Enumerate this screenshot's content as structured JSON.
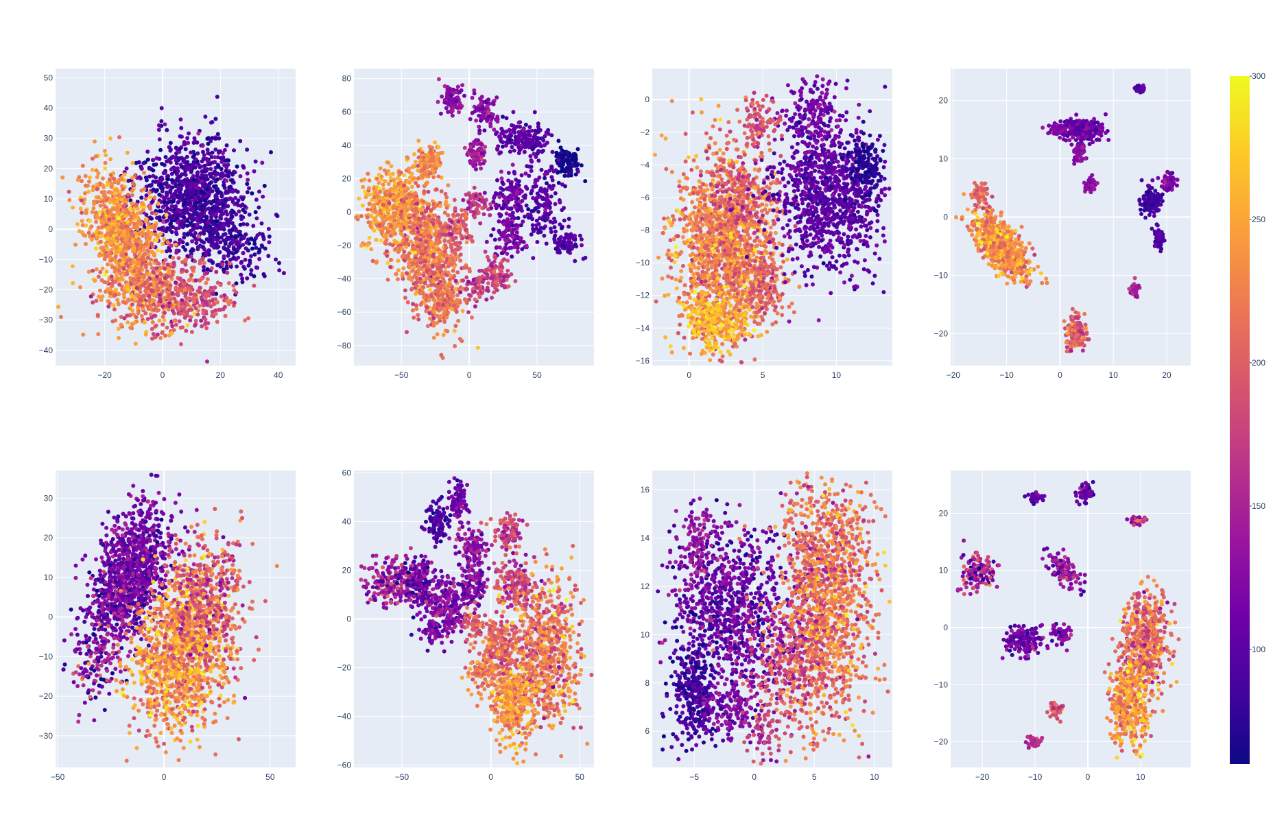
{
  "chart_data": [
    {
      "type": "scatter",
      "xrange": [
        -37,
        46
      ],
      "yrange": [
        -45,
        53
      ],
      "xticks": [
        -20,
        0,
        20,
        40
      ],
      "xtick_labels": [
        "−20",
        "0",
        "20",
        "40"
      ],
      "yticks": [
        -40,
        -30,
        -20,
        -10,
        0,
        10,
        20,
        30,
        40,
        50
      ],
      "ytick_labels": [
        "−40",
        "−30",
        "−20",
        "−10",
        "0",
        "10",
        "20",
        "30",
        "40",
        "50"
      ],
      "clusters": [
        {
          "cx": 10,
          "cy": 12,
          "sx": 9,
          "sy": 10,
          "n": 900,
          "c": 90,
          "cs": 18,
          "rot": -0.7
        },
        {
          "cx": 22,
          "cy": -3,
          "sx": 8,
          "sy": 6,
          "n": 300,
          "c": 85,
          "cs": 15,
          "rot": -0.5
        },
        {
          "cx": -14,
          "cy": 0,
          "sx": 6,
          "sy": 10,
          "n": 800,
          "c": 235,
          "cs": 22,
          "rot": 0.4
        },
        {
          "cx": -6,
          "cy": -20,
          "sx": 9,
          "sy": 6,
          "n": 400,
          "c": 220,
          "cs": 25,
          "rot": 0
        },
        {
          "cx": 8,
          "cy": -22,
          "sx": 8,
          "sy": 6,
          "n": 250,
          "c": 185,
          "cs": 20,
          "rot": 0
        }
      ]
    },
    {
      "type": "scatter",
      "xrange": [
        -85,
        92
      ],
      "yrange": [
        -92,
        86
      ],
      "xticks": [
        -50,
        0,
        50
      ],
      "xtick_labels": [
        "−50",
        "0",
        "50"
      ],
      "yticks": [
        -80,
        -60,
        -40,
        -20,
        0,
        20,
        40,
        60,
        80
      ],
      "ytick_labels": [
        "−80",
        "−60",
        "−40",
        "−20",
        "0",
        "20",
        "40",
        "60",
        "80"
      ],
      "clusters": [
        {
          "cx": -55,
          "cy": 2,
          "sx": 12,
          "sy": 12,
          "n": 500,
          "c": 240,
          "cs": 20,
          "rot": 0
        },
        {
          "cx": -30,
          "cy": -25,
          "sx": 12,
          "sy": 20,
          "n": 700,
          "c": 215,
          "cs": 25,
          "rot": 0.3
        },
        {
          "cx": -30,
          "cy": 30,
          "sx": 5,
          "sy": 5,
          "n": 120,
          "c": 230,
          "cs": 20,
          "rot": 0
        },
        {
          "cx": -12,
          "cy": 68,
          "sx": 4,
          "sy": 5,
          "n": 80,
          "c": 130,
          "cs": 15,
          "rot": 0
        },
        {
          "cx": 12,
          "cy": 60,
          "sx": 5,
          "sy": 5,
          "n": 80,
          "c": 125,
          "cs": 15,
          "rot": 0
        },
        {
          "cx": 40,
          "cy": 44,
          "sx": 10,
          "sy": 5,
          "n": 180,
          "c": 100,
          "cs": 12,
          "rot": 0
        },
        {
          "cx": 72,
          "cy": 30,
          "sx": 5,
          "sy": 4,
          "n": 100,
          "c": 60,
          "cs": 8,
          "rot": 0
        },
        {
          "cx": 5,
          "cy": 35,
          "sx": 4,
          "sy": 4,
          "n": 80,
          "c": 140,
          "cs": 15,
          "rot": 0
        },
        {
          "cx": 30,
          "cy": 10,
          "sx": 6,
          "sy": 7,
          "n": 120,
          "c": 110,
          "cs": 15,
          "rot": 0
        },
        {
          "cx": 55,
          "cy": 5,
          "sx": 8,
          "sy": 10,
          "n": 150,
          "c": 100,
          "cs": 15,
          "rot": 0
        },
        {
          "cx": 30,
          "cy": -15,
          "sx": 6,
          "sy": 6,
          "n": 100,
          "c": 120,
          "cs": 15,
          "rot": 0
        },
        {
          "cx": 72,
          "cy": -18,
          "sx": 5,
          "sy": 4,
          "n": 80,
          "c": 95,
          "cs": 12,
          "rot": 0
        },
        {
          "cx": 20,
          "cy": -37,
          "sx": 6,
          "sy": 5,
          "n": 100,
          "c": 175,
          "cs": 20,
          "rot": 0
        },
        {
          "cx": 5,
          "cy": -45,
          "sx": 6,
          "sy": 4,
          "n": 60,
          "c": 180,
          "cs": 20,
          "rot": 0
        },
        {
          "cx": -20,
          "cy": -55,
          "sx": 6,
          "sy": 6,
          "n": 120,
          "c": 215,
          "cs": 20,
          "rot": 0
        },
        {
          "cx": 5,
          "cy": 5,
          "sx": 4,
          "sy": 4,
          "n": 60,
          "c": 170,
          "cs": 20,
          "rot": 0
        },
        {
          "cx": -10,
          "cy": -10,
          "sx": 6,
          "sy": 6,
          "n": 80,
          "c": 190,
          "cs": 20,
          "rot": 0
        }
      ]
    },
    {
      "type": "scatter",
      "xrange": [
        -2.5,
        13.8
      ],
      "yrange": [
        -16.3,
        1.9
      ],
      "xticks": [
        0,
        5,
        10
      ],
      "xtick_labels": [
        "0",
        "5",
        "10"
      ],
      "yticks": [
        -16,
        -14,
        -12,
        -10,
        -8,
        -6,
        -4,
        -2,
        0
      ],
      "ytick_labels": [
        "−16",
        "−14",
        "−12",
        "−10",
        "−8",
        "−6",
        "−4",
        "−2",
        "0"
      ],
      "clusters": [
        {
          "cx": 2.5,
          "cy": -9,
          "sx": 1.7,
          "sy": 2.8,
          "n": 1400,
          "c": 225,
          "cs": 25,
          "rot": 0
        },
        {
          "cx": 1.8,
          "cy": -13.5,
          "sx": 1.2,
          "sy": 0.9,
          "n": 300,
          "c": 260,
          "cs": 20,
          "rot": 0
        },
        {
          "cx": 3.5,
          "cy": -6,
          "sx": 1.2,
          "sy": 1.2,
          "n": 200,
          "c": 190,
          "cs": 20,
          "rot": 0
        },
        {
          "cx": 5,
          "cy": -11.5,
          "sx": 0.8,
          "sy": 1,
          "n": 150,
          "c": 200,
          "cs": 20,
          "rot": 0
        },
        {
          "cx": 9.5,
          "cy": -6,
          "sx": 1.8,
          "sy": 2.2,
          "n": 1000,
          "c": 100,
          "cs": 15,
          "rot": 0
        },
        {
          "cx": 8.3,
          "cy": -1,
          "sx": 1,
          "sy": 1.2,
          "n": 180,
          "c": 115,
          "cs": 15,
          "rot": 0
        },
        {
          "cx": 12,
          "cy": -4,
          "sx": 0.6,
          "sy": 0.8,
          "n": 120,
          "c": 70,
          "cs": 10,
          "rot": 0
        },
        {
          "cx": 4.8,
          "cy": -1.5,
          "sx": 0.7,
          "sy": 0.8,
          "n": 100,
          "c": 190,
          "cs": 20,
          "rot": 0
        }
      ]
    },
    {
      "type": "scatter",
      "xrange": [
        -20.5,
        24.5
      ],
      "yrange": [
        -25.5,
        25.5
      ],
      "xticks": [
        -20,
        -10,
        0,
        10,
        20
      ],
      "xtick_labels": [
        "−20",
        "−10",
        "0",
        "10",
        "20"
      ],
      "yticks": [
        -20,
        -10,
        0,
        10,
        20
      ],
      "ytick_labels": [
        "−20",
        "−10",
        "0",
        "10",
        "20"
      ],
      "clusters": [
        {
          "cx": -11,
          "cy": -5,
          "sx": 3.2,
          "sy": 1.5,
          "n": 800,
          "c": 235,
          "cs": 25,
          "rot": -0.85
        },
        {
          "cx": -15,
          "cy": 4,
          "sx": 0.8,
          "sy": 1.5,
          "n": 60,
          "c": 200,
          "cs": 20,
          "rot": 0
        },
        {
          "cx": 4,
          "cy": 15,
          "sx": 2,
          "sy": 1,
          "n": 250,
          "c": 110,
          "cs": 15,
          "rot": 0
        },
        {
          "cx": -0.5,
          "cy": 15,
          "sx": 0.8,
          "sy": 0.5,
          "n": 50,
          "c": 120,
          "cs": 10,
          "rot": 0
        },
        {
          "cx": 3.5,
          "cy": 11,
          "sx": 0.6,
          "sy": 0.9,
          "n": 50,
          "c": 125,
          "cs": 10,
          "rot": 0
        },
        {
          "cx": 15,
          "cy": 22,
          "sx": 0.5,
          "sy": 0.3,
          "n": 40,
          "c": 100,
          "cs": 10,
          "rot": 0
        },
        {
          "cx": 5.5,
          "cy": 5.5,
          "sx": 0.5,
          "sy": 0.7,
          "n": 40,
          "c": 130,
          "cs": 10,
          "rot": 0
        },
        {
          "cx": 17,
          "cy": 3,
          "sx": 1,
          "sy": 1.2,
          "n": 120,
          "c": 85,
          "cs": 10,
          "rot": 0
        },
        {
          "cx": 20.5,
          "cy": 6,
          "sx": 0.7,
          "sy": 0.8,
          "n": 80,
          "c": 125,
          "cs": 12,
          "rot": 0
        },
        {
          "cx": 18.5,
          "cy": -3.5,
          "sx": 0.5,
          "sy": 0.8,
          "n": 60,
          "c": 90,
          "cs": 10,
          "rot": 0
        },
        {
          "cx": 14,
          "cy": -12.5,
          "sx": 0.4,
          "sy": 0.6,
          "n": 40,
          "c": 150,
          "cs": 12,
          "rot": 0
        },
        {
          "cx": 3,
          "cy": -20,
          "sx": 0.9,
          "sy": 1.5,
          "n": 140,
          "c": 195,
          "cs": 25,
          "rot": 0
        }
      ]
    },
    {
      "type": "scatter",
      "xrange": [
        -51,
        62
      ],
      "yrange": [
        -38,
        37
      ],
      "xticks": [
        -50,
        0,
        50
      ],
      "xtick_labels": [
        "−50",
        "0",
        "50"
      ],
      "yticks": [
        -30,
        -20,
        -10,
        0,
        10,
        20,
        30
      ],
      "ytick_labels": [
        "−30",
        "−20",
        "−10",
        "0",
        "10",
        "20",
        "30"
      ],
      "clusters": [
        {
          "cx": -16,
          "cy": 10,
          "sx": 11,
          "sy": 7,
          "n": 1100,
          "c": 115,
          "cs": 25,
          "rot": 0.7
        },
        {
          "cx": 8,
          "cy": -10,
          "sx": 12,
          "sy": 9,
          "n": 1200,
          "c": 235,
          "cs": 30,
          "rot": 0.4
        },
        {
          "cx": 20,
          "cy": 5,
          "sx": 9,
          "sy": 9,
          "n": 400,
          "c": 190,
          "cs": 30,
          "rot": 0
        },
        {
          "cx": -32,
          "cy": -12,
          "sx": 6,
          "sy": 6,
          "n": 120,
          "c": 130,
          "cs": 40,
          "rot": 0
        }
      ]
    },
    {
      "type": "scatter",
      "xrange": [
        -77,
        58
      ],
      "yrange": [
        -61,
        61
      ],
      "xticks": [
        -50,
        0,
        50
      ],
      "xtick_labels": [
        "−50",
        "0",
        "50"
      ],
      "yticks": [
        -60,
        -40,
        -20,
        0,
        20,
        40,
        60
      ],
      "ytick_labels": [
        "−60",
        "−40",
        "−20",
        "0",
        "20",
        "40",
        "60"
      ],
      "clusters": [
        {
          "cx": -55,
          "cy": 15,
          "sx": 8,
          "sy": 5,
          "n": 200,
          "c": 140,
          "cs": 30,
          "rot": 0
        },
        {
          "cx": -40,
          "cy": 15,
          "sx": 6,
          "sy": 5,
          "n": 150,
          "c": 110,
          "cs": 30,
          "rot": 0
        },
        {
          "cx": -30,
          "cy": 40,
          "sx": 4,
          "sy": 4,
          "n": 100,
          "c": 90,
          "cs": 15,
          "rot": 0
        },
        {
          "cx": -18,
          "cy": 48,
          "sx": 3,
          "sy": 4,
          "n": 80,
          "c": 110,
          "cs": 15,
          "rot": 0
        },
        {
          "cx": -10,
          "cy": 30,
          "sx": 4,
          "sy": 4,
          "n": 100,
          "c": 130,
          "cs": 20,
          "rot": 0
        },
        {
          "cx": -10,
          "cy": 15,
          "sx": 4,
          "sy": 5,
          "n": 120,
          "c": 115,
          "cs": 20,
          "rot": 0
        },
        {
          "cx": -25,
          "cy": 5,
          "sx": 6,
          "sy": 6,
          "n": 200,
          "c": 125,
          "cs": 20,
          "rot": 0
        },
        {
          "cx": -32,
          "cy": -5,
          "sx": 4,
          "sy": 3,
          "n": 60,
          "c": 115,
          "cs": 15,
          "rot": 0
        },
        {
          "cx": 10,
          "cy": 35,
          "sx": 4,
          "sy": 4,
          "n": 100,
          "c": 180,
          "cs": 25,
          "rot": 0
        },
        {
          "cx": 15,
          "cy": 15,
          "sx": 6,
          "sy": 5,
          "n": 150,
          "c": 175,
          "cs": 25,
          "rot": 0
        },
        {
          "cx": 30,
          "cy": -15,
          "sx": 10,
          "sy": 15,
          "n": 700,
          "c": 215,
          "cs": 30,
          "rot": 0
        },
        {
          "cx": 12,
          "cy": -35,
          "sx": 6,
          "sy": 8,
          "n": 300,
          "c": 240,
          "cs": 25,
          "rot": 0
        },
        {
          "cx": 5,
          "cy": -10,
          "sx": 5,
          "sy": 6,
          "n": 200,
          "c": 210,
          "cs": 25,
          "rot": 0
        },
        {
          "cx": -5,
          "cy": -22,
          "sx": 4,
          "sy": 4,
          "n": 80,
          "c": 215,
          "cs": 20,
          "rot": 0
        },
        {
          "cx": -10,
          "cy": -2,
          "sx": 3,
          "sy": 3,
          "n": 50,
          "c": 200,
          "cs": 20,
          "rot": 0
        }
      ]
    },
    {
      "type": "scatter",
      "xrange": [
        -8.5,
        11.5
      ],
      "yrange": [
        4.5,
        16.8
      ],
      "xticks": [
        -5,
        0,
        5,
        10
      ],
      "xtick_labels": [
        "−5",
        "0",
        "5",
        "10"
      ],
      "yticks": [
        6,
        8,
        10,
        12,
        14,
        16
      ],
      "ytick_labels": [
        "6",
        "8",
        "10",
        "12",
        "14",
        "16"
      ],
      "clusters": [
        {
          "cx": -2,
          "cy": 11,
          "sx": 2.5,
          "sy": 1.6,
          "n": 900,
          "c": 110,
          "cs": 25,
          "rot": 0
        },
        {
          "cx": -4.8,
          "cy": 13.8,
          "sx": 0.8,
          "sy": 0.8,
          "n": 120,
          "c": 140,
          "cs": 20,
          "rot": 0
        },
        {
          "cx": -5,
          "cy": 7.5,
          "sx": 1,
          "sy": 1.1,
          "n": 300,
          "c": 85,
          "cs": 15,
          "rot": 0
        },
        {
          "cx": -2,
          "cy": 7,
          "sx": 1.2,
          "sy": 0.6,
          "n": 150,
          "c": 120,
          "cs": 20,
          "rot": 0
        },
        {
          "cx": 0.8,
          "cy": 6,
          "sx": 0.7,
          "sy": 0.6,
          "n": 60,
          "c": 175,
          "cs": 25,
          "rot": 0
        },
        {
          "cx": 6,
          "cy": 11.5,
          "sx": 2,
          "sy": 2.6,
          "n": 1400,
          "c": 215,
          "cs": 30,
          "rot": 0
        },
        {
          "cx": 2.5,
          "cy": 8.5,
          "sx": 1.5,
          "sy": 1.2,
          "n": 250,
          "c": 180,
          "cs": 30,
          "rot": 0
        }
      ]
    },
    {
      "type": "scatter",
      "xrange": [
        -26,
        19.5
      ],
      "yrange": [
        -24.5,
        27.5
      ],
      "xticks": [
        -20,
        -10,
        0,
        10
      ],
      "xtick_labels": [
        "−20",
        "−10",
        "0",
        "10"
      ],
      "yticks": [
        -20,
        -10,
        0,
        10,
        20
      ],
      "ytick_labels": [
        "−20",
        "−10",
        "0",
        "10",
        "20"
      ],
      "clusters": [
        {
          "cx": -10,
          "cy": 22.7,
          "sx": 0.7,
          "sy": 0.4,
          "n": 40,
          "c": 100,
          "cs": 15,
          "rot": 0
        },
        {
          "cx": -0.5,
          "cy": 23.6,
          "sx": 0.8,
          "sy": 0.8,
          "n": 50,
          "c": 105,
          "cs": 20,
          "rot": 0
        },
        {
          "cx": 9.5,
          "cy": 18.7,
          "sx": 0.8,
          "sy": 0.5,
          "n": 40,
          "c": 170,
          "cs": 30,
          "rot": 0
        },
        {
          "cx": -21,
          "cy": 10,
          "sx": 1.5,
          "sy": 2,
          "n": 120,
          "c": 145,
          "cs": 40,
          "rot": 0
        },
        {
          "cx": -4.5,
          "cy": 10,
          "sx": 1.8,
          "sy": 1,
          "n": 120,
          "c": 130,
          "cs": 25,
          "rot": -0.8
        },
        {
          "cx": -12,
          "cy": -2.5,
          "sx": 2,
          "sy": 1.2,
          "n": 150,
          "c": 115,
          "cs": 20,
          "rot": 0
        },
        {
          "cx": -5,
          "cy": -1,
          "sx": 1,
          "sy": 1,
          "n": 50,
          "c": 120,
          "cs": 20,
          "rot": 0
        },
        {
          "cx": -6,
          "cy": -14.5,
          "sx": 0.6,
          "sy": 0.7,
          "n": 40,
          "c": 190,
          "cs": 20,
          "rot": 0
        },
        {
          "cx": -10,
          "cy": -20,
          "sx": 0.7,
          "sy": 0.4,
          "n": 40,
          "c": 165,
          "cs": 20,
          "rot": 0
        },
        {
          "cx": 11,
          "cy": -2,
          "sx": 2.2,
          "sy": 4,
          "n": 500,
          "c": 210,
          "cs": 30,
          "rot": 0
        },
        {
          "cx": 8,
          "cy": -13,
          "sx": 2,
          "sy": 4,
          "n": 400,
          "c": 240,
          "cs": 30,
          "rot": 0
        }
      ]
    }
  ],
  "colorbar": {
    "range": [
      60,
      300
    ],
    "ticks": [
      100,
      150,
      200,
      250,
      300
    ],
    "tick_labels": [
      "100",
      "150",
      "200",
      "250",
      "300"
    ]
  }
}
